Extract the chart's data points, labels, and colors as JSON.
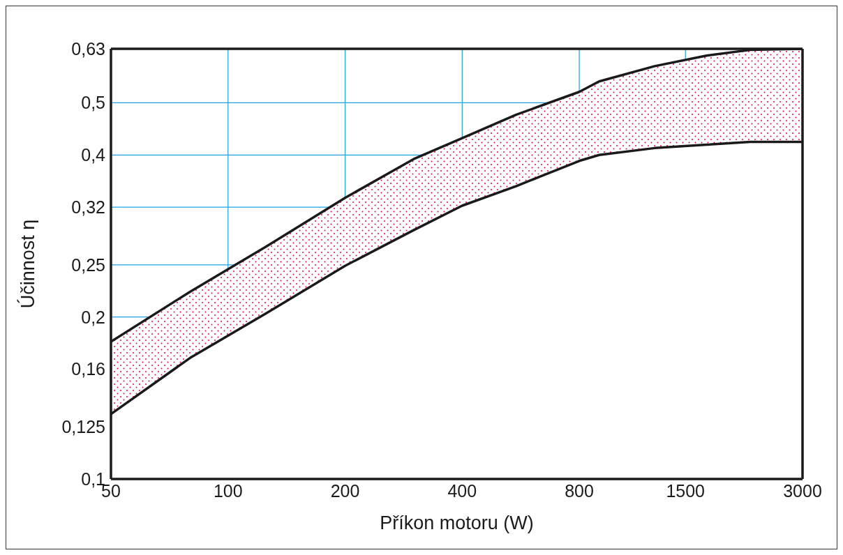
{
  "chart_data": {
    "type": "area",
    "xlabel": "Příkon motoru (W)",
    "ylabel": "Účinnost  η",
    "x": [
      50,
      80,
      125,
      200,
      300,
      400,
      550,
      800,
      900,
      1250,
      1700,
      2200,
      3000
    ],
    "series": [
      {
        "color": "#e8005a",
        "values": [
          0.18,
          0.223,
          0.27,
          0.333,
          0.393,
          0.43,
          0.475,
          0.524,
          0.548,
          0.585,
          0.612,
          0.627,
          0.63
        ]
      },
      {
        "color": "#ffffff",
        "values": [
          0.132,
          0.168,
          0.203,
          0.249,
          0.29,
          0.322,
          0.35,
          0.39,
          0.4,
          0.412,
          0.418,
          0.423,
          0.423
        ]
      }
    ],
    "log": "xy",
    "xlim": [
      50,
      3000
    ],
    "xticks": [
      50,
      100,
      200,
      400,
      800,
      1500,
      3000
    ],
    "ylim": [
      0.1,
      0.63
    ],
    "yticks": [
      {
        "value": 0.1,
        "label": "0,1"
      },
      {
        "value": 0.125,
        "label": "0,125"
      },
      {
        "value": 0.16,
        "label": "0,16"
      },
      {
        "value": 0.2,
        "label": "0,2"
      },
      {
        "value": 0.25,
        "label": "0,25"
      },
      {
        "value": 0.32,
        "label": "0,32"
      },
      {
        "value": 0.4,
        "label": "0,4"
      },
      {
        "value": 0.5,
        "label": "0,5"
      },
      {
        "value": 0.63,
        "label": "0,63"
      }
    ],
    "grid": true
  }
}
